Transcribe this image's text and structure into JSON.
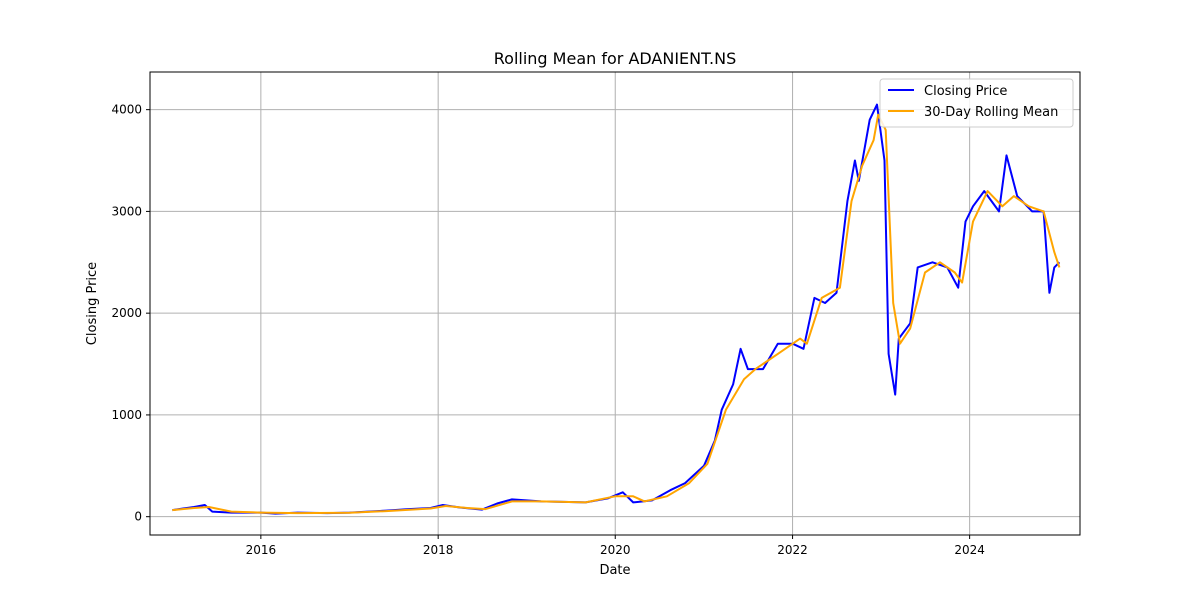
{
  "chart_data": {
    "type": "line",
    "title": "Rolling Mean for ADANIENT.NS",
    "xlabel": "Date",
    "ylabel": "Closing Price",
    "xlim": [
      "2014-10-01",
      "2025-03-31"
    ],
    "ylim": [
      -180,
      4370
    ],
    "x_ticks": [
      "2016",
      "2018",
      "2020",
      "2022",
      "2024"
    ],
    "y_ticks": [
      "0",
      "1000",
      "2000",
      "3000",
      "4000"
    ],
    "grid": true,
    "legend_position": "top-right",
    "series": [
      {
        "name": "Closing Price",
        "color": "#0000ff",
        "points": [
          [
            "2015-01-01",
            65
          ],
          [
            "2015-02-15",
            80
          ],
          [
            "2015-04-01",
            95
          ],
          [
            "2015-05-15",
            115
          ],
          [
            "2015-06-15",
            50
          ],
          [
            "2015-09-01",
            40
          ],
          [
            "2016-01-01",
            40
          ],
          [
            "2016-03-01",
            30
          ],
          [
            "2016-06-01",
            40
          ],
          [
            "2016-10-01",
            35
          ],
          [
            "2017-01-01",
            40
          ],
          [
            "2017-06-01",
            60
          ],
          [
            "2017-09-01",
            75
          ],
          [
            "2017-12-01",
            85
          ],
          [
            "2018-01-20",
            115
          ],
          [
            "2018-04-01",
            90
          ],
          [
            "2018-07-01",
            70
          ],
          [
            "2018-09-01",
            130
          ],
          [
            "2018-11-01",
            170
          ],
          [
            "2019-03-01",
            150
          ],
          [
            "2019-06-01",
            145
          ],
          [
            "2019-09-01",
            140
          ],
          [
            "2019-12-01",
            180
          ],
          [
            "2020-02-01",
            240
          ],
          [
            "2020-03-15",
            140
          ],
          [
            "2020-06-01",
            160
          ],
          [
            "2020-08-15",
            260
          ],
          [
            "2020-10-15",
            330
          ],
          [
            "2021-01-01",
            500
          ],
          [
            "2021-02-15",
            750
          ],
          [
            "2021-03-15",
            1050
          ],
          [
            "2021-05-01",
            1300
          ],
          [
            "2021-06-01",
            1650
          ],
          [
            "2021-07-01",
            1450
          ],
          [
            "2021-09-01",
            1450
          ],
          [
            "2021-11-01",
            1700
          ],
          [
            "2022-01-01",
            1700
          ],
          [
            "2022-02-15",
            1650
          ],
          [
            "2022-04-01",
            2150
          ],
          [
            "2022-05-15",
            2100
          ],
          [
            "2022-07-01",
            2200
          ],
          [
            "2022-08-15",
            3100
          ],
          [
            "2022-09-15",
            3500
          ],
          [
            "2022-10-01",
            3300
          ],
          [
            "2022-11-15",
            3900
          ],
          [
            "2022-12-15",
            4050
          ],
          [
            "2023-01-15",
            3500
          ],
          [
            "2023-02-01",
            1600
          ],
          [
            "2023-02-28",
            1200
          ],
          [
            "2023-03-15",
            1750
          ],
          [
            "2023-05-01",
            1900
          ],
          [
            "2023-06-01",
            2450
          ],
          [
            "2023-08-01",
            2500
          ],
          [
            "2023-10-01",
            2450
          ],
          [
            "2023-11-15",
            2250
          ],
          [
            "2023-12-15",
            2900
          ],
          [
            "2024-01-15",
            3050
          ],
          [
            "2024-03-01",
            3200
          ],
          [
            "2024-05-01",
            3000
          ],
          [
            "2024-06-01",
            3550
          ],
          [
            "2024-07-15",
            3150
          ],
          [
            "2024-09-15",
            3000
          ],
          [
            "2024-11-01",
            3000
          ],
          [
            "2024-11-25",
            2200
          ],
          [
            "2024-12-15",
            2450
          ],
          [
            "2025-01-05",
            2500
          ]
        ]
      },
      {
        "name": "30-Day Rolling Mean",
        "color": "#ffa500",
        "points": [
          [
            "2015-01-01",
            65
          ],
          [
            "2015-04-01",
            85
          ],
          [
            "2015-06-01",
            95
          ],
          [
            "2015-09-01",
            50
          ],
          [
            "2016-01-01",
            40
          ],
          [
            "2016-06-01",
            35
          ],
          [
            "2017-01-01",
            38
          ],
          [
            "2017-06-01",
            55
          ],
          [
            "2017-12-01",
            80
          ],
          [
            "2018-02-01",
            105
          ],
          [
            "2018-05-01",
            85
          ],
          [
            "2018-07-15",
            75
          ],
          [
            "2018-11-01",
            150
          ],
          [
            "2019-03-01",
            150
          ],
          [
            "2019-09-01",
            140
          ],
          [
            "2020-01-01",
            200
          ],
          [
            "2020-03-15",
            200
          ],
          [
            "2020-05-01",
            150
          ],
          [
            "2020-08-01",
            200
          ],
          [
            "2020-11-01",
            330
          ],
          [
            "2021-01-15",
            520
          ],
          [
            "2021-04-01",
            1050
          ],
          [
            "2021-06-15",
            1350
          ],
          [
            "2021-08-01",
            1450
          ],
          [
            "2021-11-01",
            1600
          ],
          [
            "2022-02-01",
            1750
          ],
          [
            "2022-03-01",
            1700
          ],
          [
            "2022-05-01",
            2150
          ],
          [
            "2022-07-15",
            2250
          ],
          [
            "2022-09-01",
            3100
          ],
          [
            "2022-10-15",
            3450
          ],
          [
            "2022-12-01",
            3700
          ],
          [
            "2022-12-20",
            3950
          ],
          [
            "2023-01-20",
            3800
          ],
          [
            "2023-02-20",
            2100
          ],
          [
            "2023-03-20",
            1700
          ],
          [
            "2023-05-01",
            1850
          ],
          [
            "2023-07-01",
            2400
          ],
          [
            "2023-09-01",
            2500
          ],
          [
            "2023-11-01",
            2400
          ],
          [
            "2023-12-01",
            2300
          ],
          [
            "2024-01-15",
            2900
          ],
          [
            "2024-03-15",
            3200
          ],
          [
            "2024-05-15",
            3050
          ],
          [
            "2024-07-01",
            3150
          ],
          [
            "2024-09-01",
            3050
          ],
          [
            "2024-11-01",
            3000
          ],
          [
            "2024-12-15",
            2600
          ],
          [
            "2025-01-05",
            2450
          ]
        ]
      }
    ]
  }
}
